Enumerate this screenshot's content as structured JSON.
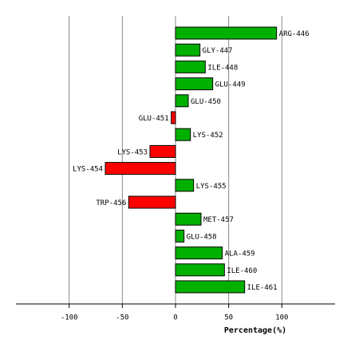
{
  "chart_data": {
    "type": "hbar",
    "x_label": "Percentage(%)",
    "categories": [
      "ARG-446",
      "GLY-447",
      "ILE-448",
      "GLU-449",
      "GLU-450",
      "GLU-451",
      "LYS-452",
      "LYS-453",
      "LYS-454",
      "LYS-455",
      "TRP-456",
      "MET-457",
      "GLU-458",
      "ALA-459",
      "ILE-460",
      "ILE-461"
    ],
    "values": [
      95,
      23,
      28,
      35,
      12,
      -4,
      14,
      -24,
      -66,
      17,
      -44,
      24,
      8,
      44,
      46,
      65
    ],
    "color_positive": "#00b000",
    "color_negative": "#ff0000",
    "xlim": [
      -150,
      150
    ],
    "xticks": [
      -100,
      -50,
      0,
      50,
      100
    ],
    "grid": true
  }
}
